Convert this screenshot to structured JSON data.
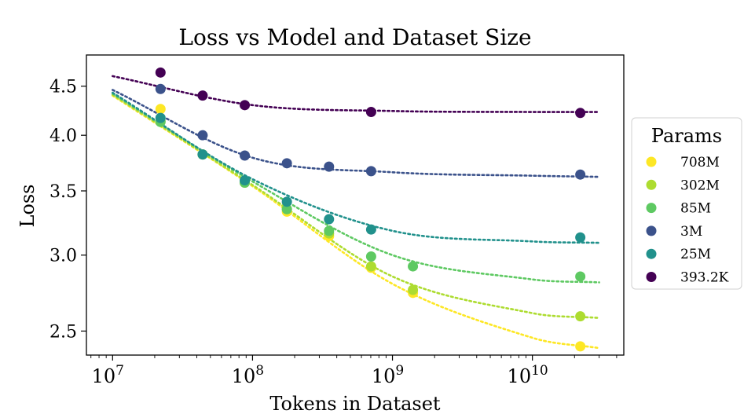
{
  "chart_data": {
    "type": "scatter",
    "title": "Loss vs Model and Dataset Size",
    "xlabel": "Tokens in Dataset",
    "ylabel": "Loss",
    "xscale": "log",
    "yscale": "log",
    "xlim": [
      6500000,
      45000000000
    ],
    "ylim": [
      2.36,
      4.85
    ],
    "x_ticks": [
      {
        "value": 10000000,
        "base": "10",
        "exp": "7"
      },
      {
        "value": 100000000,
        "base": "10",
        "exp": "8"
      },
      {
        "value": 1000000000,
        "base": "10",
        "exp": "9"
      },
      {
        "value": 10000000000,
        "base": "10",
        "exp": "10"
      }
    ],
    "y_ticks": [
      {
        "value": 2.5,
        "label": "2.5"
      },
      {
        "value": 3.0,
        "label": "3.0"
      },
      {
        "value": 3.5,
        "label": "3.5"
      },
      {
        "value": 4.0,
        "label": "4.0"
      },
      {
        "value": 4.5,
        "label": "4.5"
      }
    ],
    "legend": {
      "title": "Params",
      "placement": "outside-right"
    },
    "series": [
      {
        "name": "708M",
        "color": "#fde725",
        "points": [
          {
            "x": 22000000,
            "y": 4.26
          },
          {
            "x": 44000000,
            "y": 3.82
          },
          {
            "x": 88000000,
            "y": 3.57
          },
          {
            "x": 176000000,
            "y": 3.33
          },
          {
            "x": 352000000,
            "y": 3.14
          },
          {
            "x": 704000000,
            "y": 2.91
          },
          {
            "x": 1400000000,
            "y": 2.74
          },
          {
            "x": 22000000000,
            "y": 2.41
          }
        ],
        "fit": {
          "x": [
            10000000,
            100000000,
            1000000000,
            10000000000,
            30000000000
          ],
          "y": [
            4.4,
            3.54,
            2.8,
            2.46,
            2.4
          ]
        }
      },
      {
        "name": "302M",
        "color": "#addc30",
        "points": [
          {
            "x": 22000000,
            "y": 4.14
          },
          {
            "x": 44000000,
            "y": 3.82
          },
          {
            "x": 88000000,
            "y": 3.57
          },
          {
            "x": 176000000,
            "y": 3.35
          },
          {
            "x": 352000000,
            "y": 3.16
          },
          {
            "x": 704000000,
            "y": 2.92
          },
          {
            "x": 1400000000,
            "y": 2.76
          },
          {
            "x": 22000000000,
            "y": 2.59
          }
        ],
        "fit": {
          "x": [
            10000000,
            100000000,
            1000000000,
            10000000000,
            30000000000
          ],
          "y": [
            4.41,
            3.55,
            2.85,
            2.61,
            2.58
          ]
        }
      },
      {
        "name": "85M",
        "color": "#5ec962",
        "points": [
          {
            "x": 22000000,
            "y": 4.13
          },
          {
            "x": 44000000,
            "y": 3.82
          },
          {
            "x": 88000000,
            "y": 3.57
          },
          {
            "x": 176000000,
            "y": 3.35
          },
          {
            "x": 352000000,
            "y": 3.18
          },
          {
            "x": 704000000,
            "y": 2.99
          },
          {
            "x": 1400000000,
            "y": 2.92
          },
          {
            "x": 22000000000,
            "y": 2.85
          }
        ],
        "fit": {
          "x": [
            10000000,
            100000000,
            1000000000,
            10000000000,
            30000000000
          ],
          "y": [
            4.42,
            3.58,
            3.0,
            2.83,
            2.81
          ]
        }
      },
      {
        "name": "3M",
        "color": "#3b528b",
        "points": [
          {
            "x": 22000000,
            "y": 4.47
          },
          {
            "x": 44000000,
            "y": 4.0
          },
          {
            "x": 88000000,
            "y": 3.81
          },
          {
            "x": 176000000,
            "y": 3.74
          },
          {
            "x": 352000000,
            "y": 3.71
          },
          {
            "x": 704000000,
            "y": 3.67
          },
          {
            "x": 22000000000,
            "y": 3.64
          }
        ],
        "fit": {
          "x": [
            10000000,
            100000000,
            1000000000,
            10000000000,
            30000000000
          ],
          "y": [
            4.46,
            3.79,
            3.66,
            3.63,
            3.62
          ]
        }
      },
      {
        "name": "25M",
        "color": "#21918c",
        "points": [
          {
            "x": 22000000,
            "y": 4.17
          },
          {
            "x": 44000000,
            "y": 3.82
          },
          {
            "x": 88000000,
            "y": 3.59
          },
          {
            "x": 176000000,
            "y": 3.41
          },
          {
            "x": 352000000,
            "y": 3.27
          },
          {
            "x": 704000000,
            "y": 3.19
          },
          {
            "x": 22000000000,
            "y": 3.13
          }
        ],
        "fit": {
          "x": [
            10000000,
            100000000,
            1000000000,
            10000000000,
            30000000000
          ],
          "y": [
            4.43,
            3.6,
            3.18,
            3.1,
            3.09
          ]
        }
      },
      {
        "name": "393.2K",
        "color": "#440154",
        "points": [
          {
            "x": 22000000,
            "y": 4.65
          },
          {
            "x": 44000000,
            "y": 4.4
          },
          {
            "x": 88000000,
            "y": 4.3
          },
          {
            "x": 704000000,
            "y": 4.23
          },
          {
            "x": 22000000000,
            "y": 4.22
          }
        ],
        "fit": {
          "x": [
            10000000,
            100000000,
            1000000000,
            10000000000,
            30000000000
          ],
          "y": [
            4.61,
            4.3,
            4.24,
            4.23,
            4.23
          ]
        }
      }
    ]
  }
}
